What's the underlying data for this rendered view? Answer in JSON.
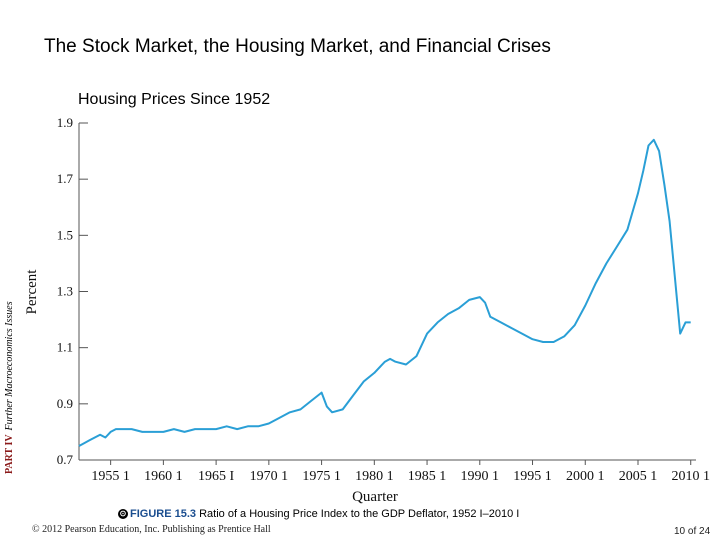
{
  "slide_title": "The Stock Market, the Housing Market, and Financial Crises",
  "side_label": {
    "part": "PART IV",
    "rest": "Further Macroeconomics Issues"
  },
  "caption": {
    "icon": "⊙",
    "figure_label": "FIGURE 15.3",
    "text": "Ratio of a Housing Price Index to the GDP Deflator, 1952 I–2010 I"
  },
  "footer": {
    "copyright": "© 2012 Pearson Education, Inc. Publishing as Prentice Hall",
    "page": "10 of 24"
  },
  "colors": {
    "line": "#2a9fd6",
    "axis": "#555555"
  },
  "chart_data": {
    "type": "line",
    "title": "Housing Prices Since 1952",
    "xlabel": "Quarter",
    "ylabel": "Percent",
    "xlim": [
      1952,
      2010.5
    ],
    "ylim": [
      0.7,
      1.9
    ],
    "y_ticks": [
      0.7,
      0.9,
      1.1,
      1.3,
      1.5,
      1.7,
      1.9
    ],
    "y_tick_labels": [
      "0.7",
      "0.9",
      "1.1",
      "1.3",
      "1.5",
      "1.7",
      "1.9"
    ],
    "x_ticks": [
      1955,
      1960,
      1965,
      1970,
      1975,
      1980,
      1985,
      1990,
      1995,
      2000,
      2005,
      2010
    ],
    "x_tick_labels": [
      "1955 1",
      "1960 1",
      "1965 I",
      "1970 1",
      "1975 1",
      "1980 1",
      "1985 1",
      "1990 1",
      "1995 1",
      "2000 1",
      "2005 1",
      "2010 1"
    ],
    "grid": false,
    "series": [
      {
        "name": "Ratio of a Housing Price Index to the GDP Deflator",
        "x": [
          1952,
          1952.5,
          1953,
          1953.5,
          1954,
          1954.5,
          1955,
          1955.5,
          1956,
          1957,
          1958,
          1959,
          1960,
          1961,
          1962,
          1963,
          1964,
          1965,
          1966,
          1967,
          1968,
          1969,
          1970,
          1971,
          1972,
          1973,
          1974,
          1975,
          1975.5,
          1976,
          1977,
          1978,
          1979,
          1980,
          1981,
          1981.5,
          1982,
          1983,
          1984,
          1985,
          1986,
          1987,
          1988,
          1989,
          1990,
          1990.5,
          1991,
          1992,
          1993,
          1994,
          1995,
          1996,
          1997,
          1998,
          1999,
          2000,
          2001,
          2002,
          2003,
          2004,
          2005,
          2005.5,
          2006,
          2006.5,
          2007,
          2007.5,
          2008,
          2008.5,
          2009,
          2009.5,
          2010
        ],
        "values": [
          0.75,
          0.76,
          0.77,
          0.78,
          0.79,
          0.78,
          0.8,
          0.81,
          0.81,
          0.81,
          0.8,
          0.8,
          0.8,
          0.81,
          0.8,
          0.81,
          0.81,
          0.81,
          0.82,
          0.81,
          0.82,
          0.82,
          0.83,
          0.85,
          0.87,
          0.88,
          0.91,
          0.94,
          0.89,
          0.87,
          0.88,
          0.93,
          0.98,
          1.01,
          1.05,
          1.06,
          1.05,
          1.04,
          1.07,
          1.15,
          1.19,
          1.22,
          1.24,
          1.27,
          1.28,
          1.26,
          1.21,
          1.19,
          1.17,
          1.15,
          1.13,
          1.12,
          1.12,
          1.14,
          1.18,
          1.25,
          1.33,
          1.4,
          1.46,
          1.52,
          1.65,
          1.73,
          1.82,
          1.84,
          1.8,
          1.68,
          1.55,
          1.35,
          1.15,
          1.19,
          1.19
        ]
      }
    ]
  }
}
